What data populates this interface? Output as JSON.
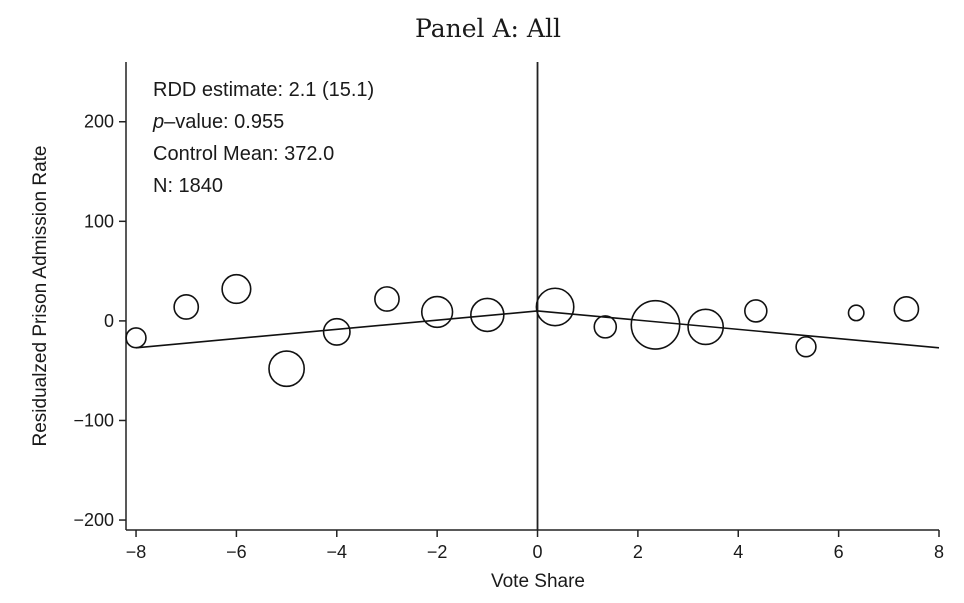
{
  "chart_data": {
    "type": "scatter",
    "title": "Panel A: All",
    "xlabel": "Vote Share",
    "ylabel": "Residualzed Prison Admission Rate",
    "xlim": [
      -8.2,
      8.0
    ],
    "ylim": [
      -210,
      260
    ],
    "xticks": [
      -8,
      -6,
      -4,
      -2,
      0,
      2,
      4,
      6,
      8
    ],
    "yticks": [
      -200,
      -100,
      0,
      100,
      200
    ],
    "xtick_labels": [
      "−8",
      "−6",
      "−4",
      "−2",
      "0",
      "2",
      "4",
      "6",
      "8"
    ],
    "ytick_labels": [
      "−200",
      "−100",
      "0",
      "100",
      "200"
    ],
    "cutoff": 0,
    "grid": false,
    "points": [
      {
        "x": -8.0,
        "y": -17,
        "weight": 0.9
      },
      {
        "x": -7.0,
        "y": 14,
        "weight": 1.1
      },
      {
        "x": -6.0,
        "y": 32,
        "weight": 1.3
      },
      {
        "x": -5.0,
        "y": -48,
        "weight": 1.6
      },
      {
        "x": -4.0,
        "y": -11,
        "weight": 1.2
      },
      {
        "x": -3.0,
        "y": 22,
        "weight": 1.1
      },
      {
        "x": -2.0,
        "y": 9,
        "weight": 1.4
      },
      {
        "x": -1.0,
        "y": 6,
        "weight": 1.5
      },
      {
        "x": 0.35,
        "y": 14,
        "weight": 1.7
      },
      {
        "x": 1.35,
        "y": -6,
        "weight": 1.0
      },
      {
        "x": 2.35,
        "y": -4,
        "weight": 2.2
      },
      {
        "x": 3.35,
        "y": -6,
        "weight": 1.6
      },
      {
        "x": 4.35,
        "y": 10,
        "weight": 1.0
      },
      {
        "x": 5.35,
        "y": -26,
        "weight": 0.9
      },
      {
        "x": 6.35,
        "y": 8,
        "weight": 0.7
      },
      {
        "x": 7.35,
        "y": 12,
        "weight": 1.1
      }
    ],
    "fit_lines": [
      {
        "side": "left",
        "x": [
          -8.0,
          0.0
        ],
        "y": [
          -27,
          10
        ]
      },
      {
        "side": "right",
        "x": [
          0.0,
          8.0
        ],
        "y": [
          10,
          -27
        ]
      }
    ],
    "annotations": {
      "rdd_estimate": "RDD estimate: 2.1 (15.1)",
      "p_value_italic": "p",
      "p_value_rest": "–value: 0.955",
      "control_mean": "Control Mean: 372.0",
      "n": "N: 1840"
    }
  }
}
